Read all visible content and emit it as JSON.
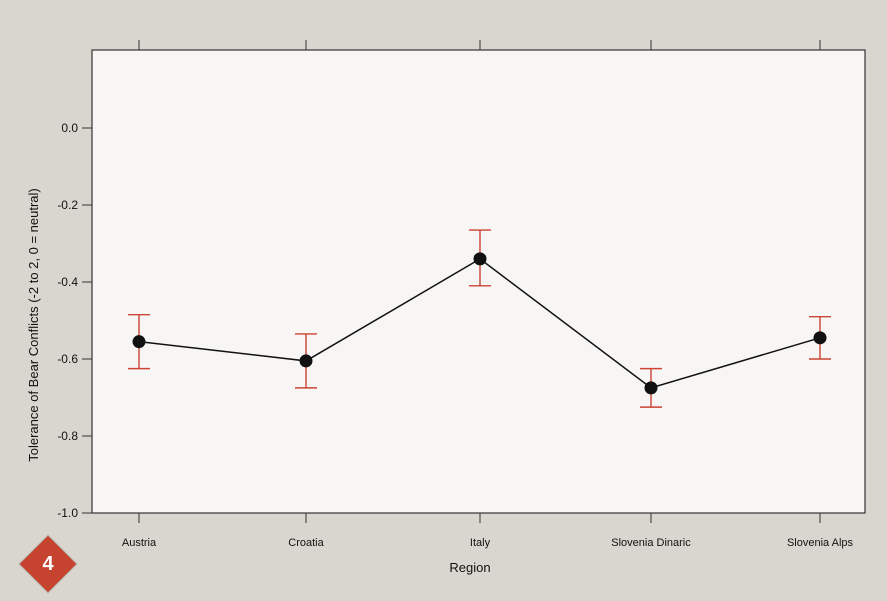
{
  "badge": {
    "number": "4",
    "color": "#c6432f"
  },
  "chart_data": {
    "type": "line",
    "categories": [
      "Austria",
      "Croatia",
      "Italy",
      "Slovenia Dinaric",
      "Slovenia Alps"
    ],
    "values": [
      -0.555,
      -0.605,
      -0.34,
      -0.675,
      -0.545
    ],
    "error_low": [
      -0.625,
      -0.675,
      -0.41,
      -0.725,
      -0.6
    ],
    "error_high": [
      -0.485,
      -0.535,
      -0.265,
      -0.625,
      -0.49
    ],
    "ylim": [
      -1.0,
      0.0
    ],
    "yticks": [
      0.0,
      -0.2,
      -0.4,
      -0.6,
      -0.8,
      -1.0
    ],
    "ytick_labels": [
      "0.0",
      "-0.2",
      "-0.4",
      "-0.6",
      "-0.8",
      "-1.0"
    ],
    "xlabel": "Region",
    "ylabel": "Tolerance of Bear Conflicts (-2 to 2, 0 = neutral)",
    "line_color": "#111111",
    "errorbar_color": "#cc4433",
    "grid": false,
    "legend": "none"
  }
}
